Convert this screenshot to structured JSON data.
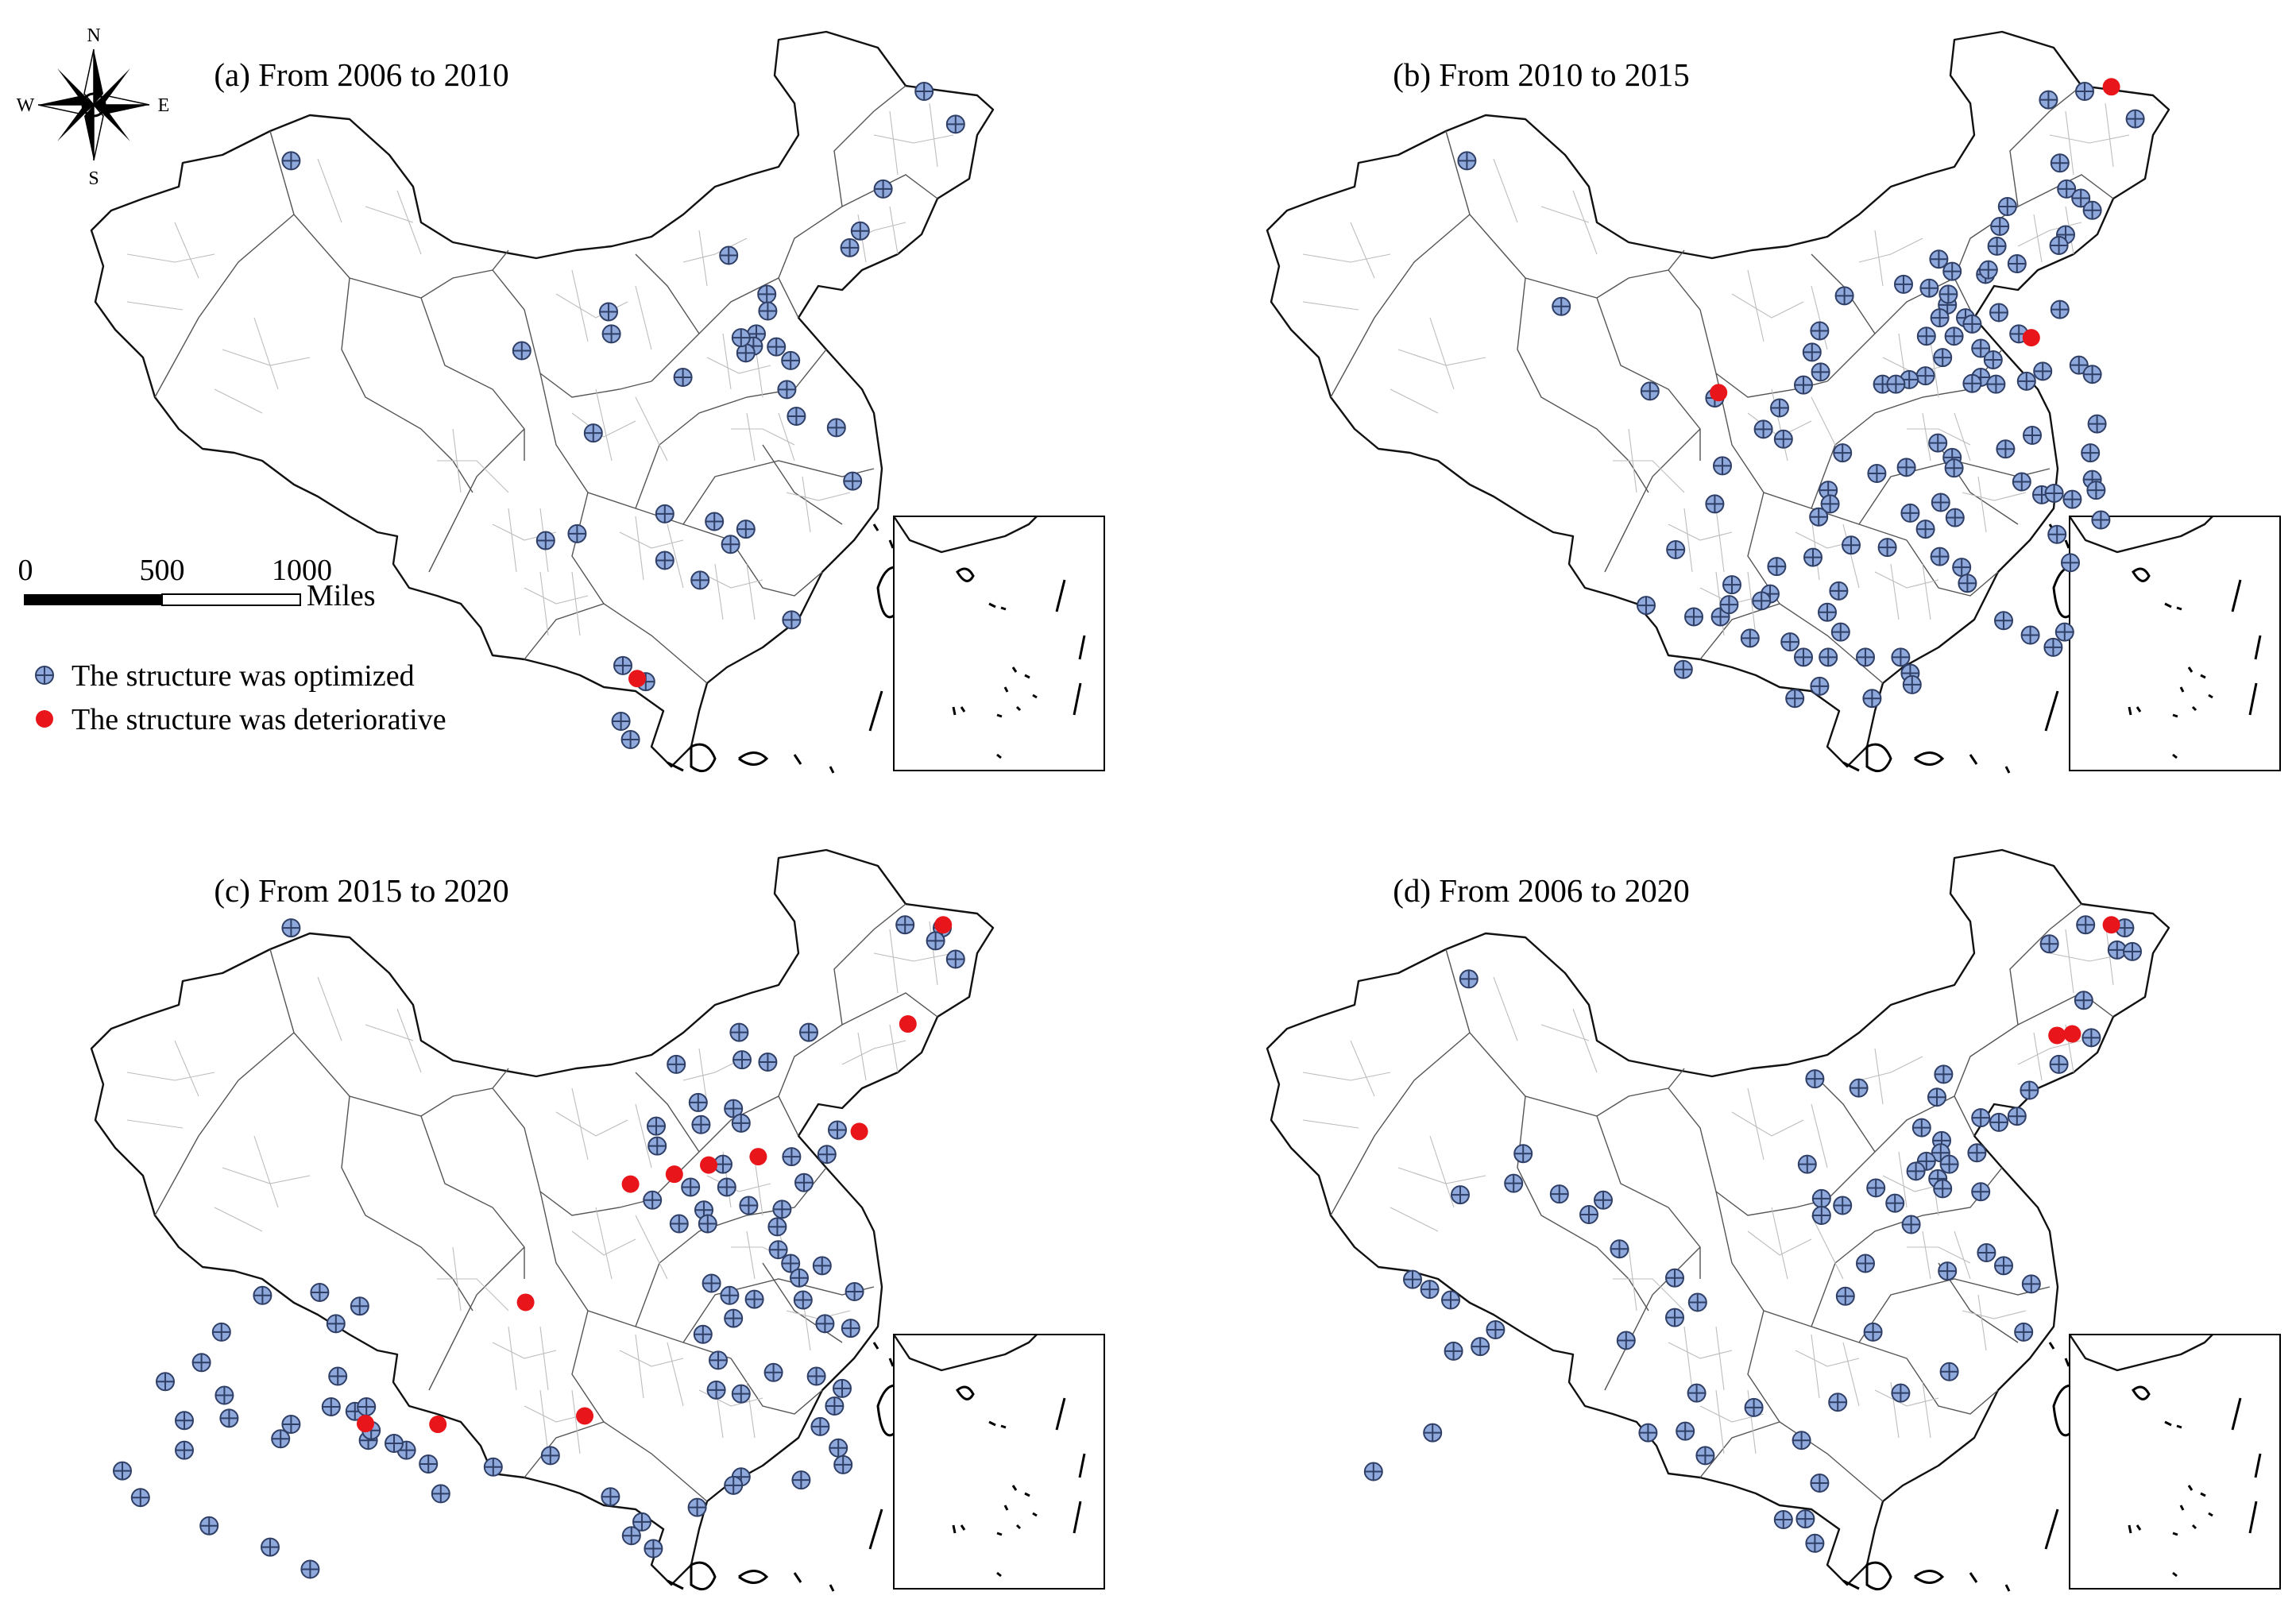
{
  "compass": {
    "n": "N",
    "s": "S",
    "e": "E",
    "w": "W"
  },
  "scale": {
    "ticks": [
      "0",
      "500",
      "1000"
    ],
    "unit": "Miles"
  },
  "legend": {
    "optimized_label": "The structure was optimized",
    "deteriorative_label": "The structure was deteriorative",
    "optimized_color": "#8fa9dc",
    "deteriorative_color": "#e8161b"
  },
  "panels": [
    {
      "title": "(a)  From 2006 to 2010",
      "optimized": [
        [
          0.222,
          0.19
        ],
        [
          0.886,
          0.099
        ],
        [
          0.919,
          0.142
        ],
        [
          0.843,
          0.227
        ],
        [
          0.819,
          0.282
        ],
        [
          0.808,
          0.304
        ],
        [
          0.681,
          0.314
        ],
        [
          0.721,
          0.365
        ],
        [
          0.722,
          0.387
        ],
        [
          0.71,
          0.417
        ],
        [
          0.707,
          0.433
        ],
        [
          0.699,
          0.442
        ],
        [
          0.694,
          0.422
        ],
        [
          0.731,
          0.434
        ],
        [
          0.746,
          0.452
        ],
        [
          0.633,
          0.474
        ],
        [
          0.742,
          0.49
        ],
        [
          0.555,
          0.388
        ],
        [
          0.558,
          0.417
        ],
        [
          0.464,
          0.439
        ],
        [
          0.752,
          0.525
        ],
        [
          0.794,
          0.54
        ],
        [
          0.539,
          0.547
        ],
        [
          0.811,
          0.61
        ],
        [
          0.614,
          0.653
        ],
        [
          0.666,
          0.663
        ],
        [
          0.699,
          0.673
        ],
        [
          0.683,
          0.693
        ],
        [
          0.614,
          0.714
        ],
        [
          0.651,
          0.74
        ],
        [
          0.522,
          0.679
        ],
        [
          0.489,
          0.688
        ],
        [
          0.747,
          0.792
        ],
        [
          0.57,
          0.852
        ],
        [
          0.594,
          0.873
        ],
        [
          0.568,
          0.925
        ],
        [
          0.578,
          0.949
        ]
      ],
      "deteriorative": [
        [
          0.585,
          0.869
        ]
      ]
    },
    {
      "title": "(b)  From 2010 to 2015",
      "optimized": [
        [
          0.222,
          0.19
        ],
        [
          0.87,
          0.099
        ],
        [
          0.832,
          0.11
        ],
        [
          0.923,
          0.135
        ],
        [
          0.844,
          0.193
        ],
        [
          0.851,
          0.227
        ],
        [
          0.866,
          0.239
        ],
        [
          0.878,
          0.255
        ],
        [
          0.85,
          0.287
        ],
        [
          0.843,
          0.301
        ],
        [
          0.799,
          0.325
        ],
        [
          0.766,
          0.339
        ],
        [
          0.731,
          0.335
        ],
        [
          0.707,
          0.357
        ],
        [
          0.726,
          0.379
        ],
        [
          0.718,
          0.396
        ],
        [
          0.745,
          0.396
        ],
        [
          0.752,
          0.404
        ],
        [
          0.78,
          0.389
        ],
        [
          0.844,
          0.385
        ],
        [
          0.704,
          0.42
        ],
        [
          0.733,
          0.42
        ],
        [
          0.761,
          0.436
        ],
        [
          0.801,
          0.417
        ],
        [
          0.774,
          0.451
        ],
        [
          0.721,
          0.448
        ],
        [
          0.761,
          0.474
        ],
        [
          0.703,
          0.472
        ],
        [
          0.686,
          0.477
        ],
        [
          0.658,
          0.483
        ],
        [
          0.672,
          0.483
        ],
        [
          0.752,
          0.482
        ],
        [
          0.777,
          0.483
        ],
        [
          0.809,
          0.479
        ],
        [
          0.826,
          0.466
        ],
        [
          0.864,
          0.458
        ],
        [
          0.878,
          0.47
        ],
        [
          0.883,
          0.535
        ],
        [
          0.876,
          0.573
        ],
        [
          0.878,
          0.608
        ],
        [
          0.787,
          0.568
        ],
        [
          0.716,
          0.56
        ],
        [
          0.731,
          0.579
        ],
        [
          0.733,
          0.593
        ],
        [
          0.683,
          0.592
        ],
        [
          0.652,
          0.6
        ],
        [
          0.616,
          0.573
        ],
        [
          0.601,
          0.622
        ],
        [
          0.603,
          0.64
        ],
        [
          0.591,
          0.657
        ],
        [
          0.625,
          0.694
        ],
        [
          0.585,
          0.71
        ],
        [
          0.547,
          0.722
        ],
        [
          0.5,
          0.746
        ],
        [
          0.54,
          0.758
        ],
        [
          0.519,
          0.816
        ],
        [
          0.561,
          0.821
        ],
        [
          0.575,
          0.841
        ],
        [
          0.601,
          0.841
        ],
        [
          0.64,
          0.841
        ],
        [
          0.677,
          0.841
        ],
        [
          0.687,
          0.862
        ],
        [
          0.689,
          0.877
        ],
        [
          0.647,
          0.895
        ],
        [
          0.566,
          0.895
        ],
        [
          0.592,
          0.879
        ],
        [
          0.6,
          0.782
        ],
        [
          0.614,
          0.808
        ],
        [
          0.612,
          0.754
        ],
        [
          0.663,
          0.697
        ],
        [
          0.687,
          0.652
        ],
        [
          0.703,
          0.673
        ],
        [
          0.719,
          0.638
        ],
        [
          0.734,
          0.658
        ],
        [
          0.718,
          0.709
        ],
        [
          0.741,
          0.723
        ],
        [
          0.747,
          0.744
        ],
        [
          0.785,
          0.793
        ],
        [
          0.813,
          0.812
        ],
        [
          0.837,
          0.828
        ],
        [
          0.849,
          0.808
        ],
        [
          0.855,
          0.717
        ],
        [
          0.841,
          0.68
        ],
        [
          0.825,
          0.628
        ],
        [
          0.857,
          0.634
        ],
        [
          0.887,
          0.661
        ],
        [
          0.882,
          0.622
        ],
        [
          0.804,
          0.611
        ],
        [
          0.815,
          0.55
        ],
        [
          0.838,
          0.626
        ],
        [
          0.533,
          0.542
        ],
        [
          0.554,
          0.555
        ],
        [
          0.49,
          0.59
        ],
        [
          0.482,
          0.64
        ],
        [
          0.441,
          0.7
        ],
        [
          0.41,
          0.773
        ],
        [
          0.46,
          0.788
        ],
        [
          0.488,
          0.788
        ],
        [
          0.531,
          0.767
        ],
        [
          0.497,
          0.772
        ],
        [
          0.449,
          0.857
        ],
        [
          0.321,
          0.381
        ],
        [
          0.414,
          0.492
        ],
        [
          0.482,
          0.501
        ],
        [
          0.55,
          0.514
        ],
        [
          0.575,
          0.484
        ],
        [
          0.593,
          0.467
        ],
        [
          0.584,
          0.441
        ],
        [
          0.592,
          0.413
        ],
        [
          0.618,
          0.367
        ],
        [
          0.68,
          0.352
        ],
        [
          0.717,
          0.319
        ],
        [
          0.727,
          0.365
        ],
        [
          0.769,
          0.333
        ],
        [
          0.778,
          0.302
        ],
        [
          0.781,
          0.276
        ],
        [
          0.789,
          0.25
        ]
      ],
      "deteriorative": [
        [
          0.898,
          0.093
        ],
        [
          0.814,
          0.422
        ],
        [
          0.486,
          0.494
        ]
      ]
    },
    {
      "title": "(c)  From 2015 to 2020",
      "optimized": [
        [
          0.222,
          0.123
        ],
        [
          0.866,
          0.119
        ],
        [
          0.905,
          0.123
        ],
        [
          0.919,
          0.164
        ],
        [
          0.898,
          0.14
        ],
        [
          0.692,
          0.26
        ],
        [
          0.765,
          0.26
        ],
        [
          0.695,
          0.296
        ],
        [
          0.626,
          0.302
        ],
        [
          0.722,
          0.299
        ],
        [
          0.649,
          0.352
        ],
        [
          0.686,
          0.36
        ],
        [
          0.605,
          0.383
        ],
        [
          0.606,
          0.409
        ],
        [
          0.652,
          0.381
        ],
        [
          0.694,
          0.379
        ],
        [
          0.675,
          0.433
        ],
        [
          0.679,
          0.463
        ],
        [
          0.641,
          0.463
        ],
        [
          0.601,
          0.48
        ],
        [
          0.655,
          0.493
        ],
        [
          0.629,
          0.511
        ],
        [
          0.659,
          0.511
        ],
        [
          0.702,
          0.487
        ],
        [
          0.737,
          0.492
        ],
        [
          0.795,
          0.388
        ],
        [
          0.747,
          0.423
        ],
        [
          0.784,
          0.42
        ],
        [
          0.76,
          0.457
        ],
        [
          0.732,
          0.515
        ],
        [
          0.733,
          0.545
        ],
        [
          0.746,
          0.563
        ],
        [
          0.779,
          0.566
        ],
        [
          0.813,
          0.6
        ],
        [
          0.809,
          0.648
        ],
        [
          0.782,
          0.642
        ],
        [
          0.759,
          0.611
        ],
        [
          0.755,
          0.582
        ],
        [
          0.708,
          0.61
        ],
        [
          0.686,
          0.635
        ],
        [
          0.682,
          0.605
        ],
        [
          0.663,
          0.589
        ],
        [
          0.654,
          0.656
        ],
        [
          0.67,
          0.69
        ],
        [
          0.668,
          0.729
        ],
        [
          0.694,
          0.734
        ],
        [
          0.728,
          0.706
        ],
        [
          0.773,
          0.711
        ],
        [
          0.8,
          0.727
        ],
        [
          0.792,
          0.75
        ],
        [
          0.777,
          0.777
        ],
        [
          0.796,
          0.805
        ],
        [
          0.801,
          0.827
        ],
        [
          0.757,
          0.847
        ],
        [
          0.694,
          0.843
        ],
        [
          0.686,
          0.854
        ],
        [
          0.648,
          0.883
        ],
        [
          0.59,
          0.902
        ],
        [
          0.579,
          0.92
        ],
        [
          0.602,
          0.937
        ],
        [
          0.557,
          0.869
        ],
        [
          0.494,
          0.815
        ],
        [
          0.434,
          0.83
        ],
        [
          0.379,
          0.865
        ],
        [
          0.366,
          0.826
        ],
        [
          0.343,
          0.808
        ],
        [
          0.33,
          0.799
        ],
        [
          0.303,
          0.795
        ],
        [
          0.271,
          0.711
        ],
        [
          0.264,
          0.751
        ],
        [
          0.289,
          0.757
        ],
        [
          0.301,
          0.751
        ],
        [
          0.306,
          0.782
        ],
        [
          0.211,
          0.793
        ],
        [
          0.222,
          0.774
        ],
        [
          0.269,
          0.642
        ],
        [
          0.294,
          0.619
        ],
        [
          0.252,
          0.601
        ],
        [
          0.192,
          0.605
        ],
        [
          0.149,
          0.653
        ],
        [
          0.128,
          0.693
        ],
        [
          0.09,
          0.718
        ],
        [
          0.11,
          0.769
        ],
        [
          0.152,
          0.736
        ],
        [
          0.157,
          0.766
        ],
        [
          0.11,
          0.808
        ],
        [
          0.045,
          0.835
        ],
        [
          0.064,
          0.87
        ],
        [
          0.136,
          0.907
        ],
        [
          0.2,
          0.935
        ],
        [
          0.242,
          0.964
        ]
      ],
      "deteriorative": [
        [
          0.906,
          0.119
        ],
        [
          0.869,
          0.249
        ],
        [
          0.818,
          0.39
        ],
        [
          0.712,
          0.423
        ],
        [
          0.66,
          0.434
        ],
        [
          0.624,
          0.446
        ],
        [
          0.578,
          0.459
        ],
        [
          0.468,
          0.614
        ],
        [
          0.376,
          0.774
        ],
        [
          0.53,
          0.763
        ],
        [
          0.3,
          0.773
        ]
      ]
    },
    {
      "title": "(d)  From 2006 to 2020",
      "optimized": [
        [
          0.224,
          0.19
        ],
        [
          0.871,
          0.119
        ],
        [
          0.833,
          0.144
        ],
        [
          0.904,
          0.152
        ],
        [
          0.92,
          0.154
        ],
        [
          0.912,
          0.123
        ],
        [
          0.877,
          0.267
        ],
        [
          0.869,
          0.218
        ],
        [
          0.843,
          0.302
        ],
        [
          0.812,
          0.336
        ],
        [
          0.715,
          0.345
        ],
        [
          0.699,
          0.385
        ],
        [
          0.72,
          0.402
        ],
        [
          0.719,
          0.418
        ],
        [
          0.728,
          0.433
        ],
        [
          0.716,
          0.452
        ],
        [
          0.704,
          0.429
        ],
        [
          0.693,
          0.442
        ],
        [
          0.721,
          0.465
        ],
        [
          0.761,
          0.469
        ],
        [
          0.757,
          0.418
        ],
        [
          0.78,
          0.378
        ],
        [
          0.799,
          0.37
        ],
        [
          0.761,
          0.372
        ],
        [
          0.722,
          0.315
        ],
        [
          0.587,
          0.321
        ],
        [
          0.633,
          0.333
        ],
        [
          0.579,
          0.433
        ],
        [
          0.594,
          0.478
        ],
        [
          0.594,
          0.5
        ],
        [
          0.616,
          0.487
        ],
        [
          0.651,
          0.464
        ],
        [
          0.671,
          0.484
        ],
        [
          0.688,
          0.512
        ],
        [
          0.64,
          0.563
        ],
        [
          0.619,
          0.606
        ],
        [
          0.648,
          0.653
        ],
        [
          0.726,
          0.573
        ],
        [
          0.767,
          0.549
        ],
        [
          0.785,
          0.566
        ],
        [
          0.814,
          0.59
        ],
        [
          0.806,
          0.653
        ],
        [
          0.728,
          0.705
        ],
        [
          0.677,
          0.733
        ],
        [
          0.611,
          0.745
        ],
        [
          0.573,
          0.795
        ],
        [
          0.592,
          0.851
        ],
        [
          0.577,
          0.898
        ],
        [
          0.587,
          0.93
        ],
        [
          0.554,
          0.899
        ],
        [
          0.523,
          0.752
        ],
        [
          0.463,
          0.733
        ],
        [
          0.451,
          0.783
        ],
        [
          0.472,
          0.815
        ],
        [
          0.412,
          0.785
        ],
        [
          0.389,
          0.664
        ],
        [
          0.382,
          0.544
        ],
        [
          0.44,
          0.634
        ],
        [
          0.464,
          0.614
        ],
        [
          0.44,
          0.582
        ],
        [
          0.365,
          0.48
        ],
        [
          0.35,
          0.499
        ],
        [
          0.319,
          0.472
        ],
        [
          0.281,
          0.419
        ],
        [
          0.271,
          0.458
        ],
        [
          0.215,
          0.473
        ],
        [
          0.165,
          0.584
        ],
        [
          0.183,
          0.597
        ],
        [
          0.205,
          0.611
        ],
        [
          0.252,
          0.65
        ],
        [
          0.236,
          0.672
        ],
        [
          0.208,
          0.678
        ],
        [
          0.186,
          0.785
        ],
        [
          0.124,
          0.836
        ]
      ],
      "deteriorative": [
        [
          0.898,
          0.119
        ],
        [
          0.841,
          0.264
        ],
        [
          0.857,
          0.262
        ]
      ]
    }
  ]
}
